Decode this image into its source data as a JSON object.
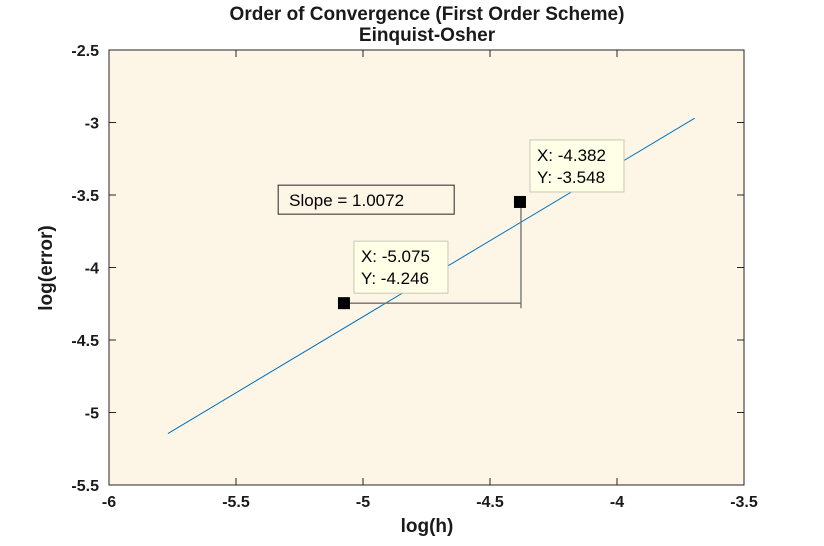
{
  "chart_data": {
    "type": "line",
    "title": "Order of Convergence (First Order Scheme)",
    "subtitle": "Einquist-Osher",
    "xlabel": "log(h)",
    "ylabel": "log(error)",
    "xlim": [
      -6,
      -3.5
    ],
    "ylim": [
      -5.5,
      -2.5
    ],
    "xticks": [
      -6,
      -5.5,
      -5,
      -4.5,
      -4,
      -3.5
    ],
    "yticks": [
      -2.5,
      -3,
      -3.5,
      -4,
      -4.5,
      -5,
      -5.5
    ],
    "xtick_labels": [
      "-6",
      "-5.5",
      "-5",
      "-4.5",
      "-4",
      "-3.5"
    ],
    "ytick_labels": [
      "-2.5",
      "-3",
      "-3.5",
      "-4",
      "-4.5",
      "-5",
      "-5.5"
    ],
    "grid": false,
    "series": [
      {
        "x": [
          -5.768,
          -3.694
        ],
        "y": [
          -5.145,
          -2.97
        ],
        "color": "#0072bd"
      }
    ],
    "datatips": [
      {
        "x": -5.075,
        "y": -4.246,
        "x_text": "X: -5.075",
        "y_text": "Y: -4.246"
      },
      {
        "x": -4.382,
        "y": -3.548,
        "x_text": "X: -4.382",
        "y_text": "Y: -3.548"
      }
    ],
    "slope_triangle": {
      "from": {
        "x": -5.075,
        "y": -4.246
      },
      "corner": {
        "x": -4.382,
        "y": -4.246
      },
      "to": {
        "x": -4.382,
        "y": -3.548
      }
    },
    "annotation": {
      "text": "Slope = 1.0072",
      "x": -5.33,
      "y": -3.57
    },
    "background_color": "#fdf5e6"
  }
}
